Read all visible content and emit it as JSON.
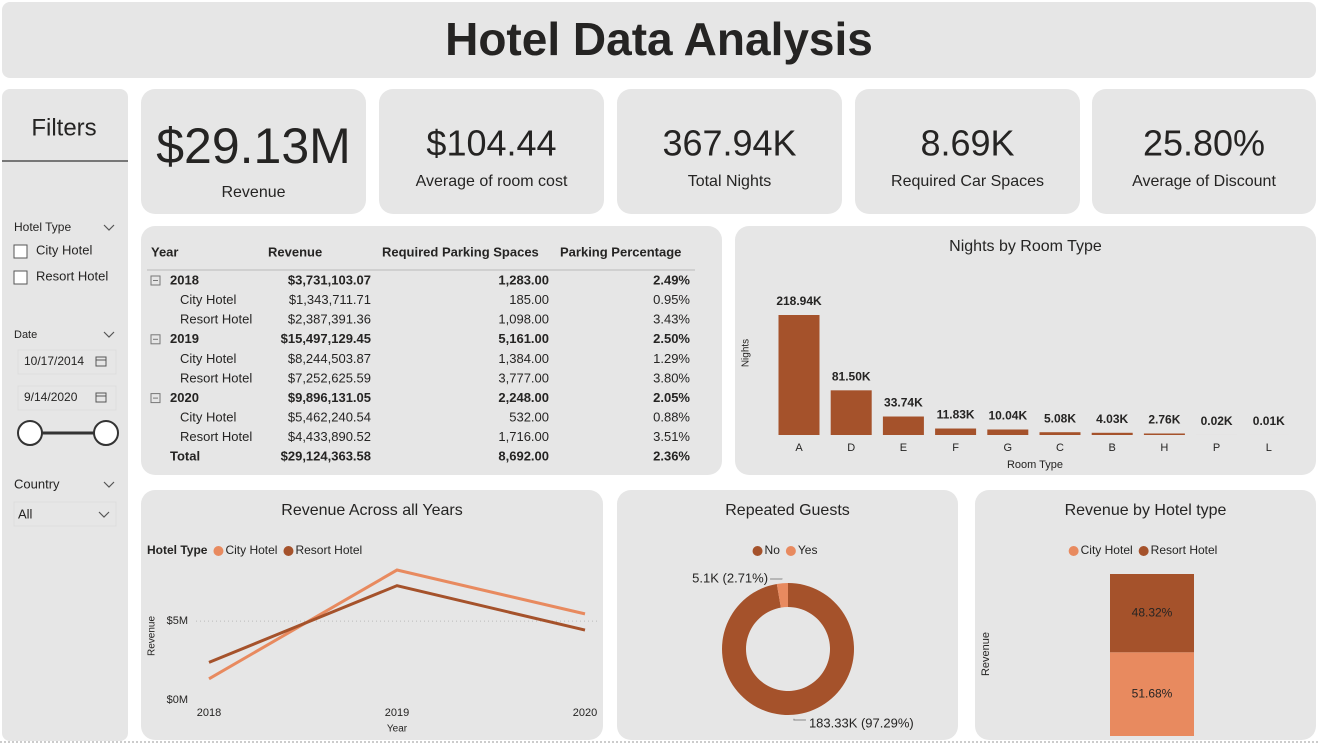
{
  "header": {
    "title": "Hotel Data Analysis"
  },
  "filters": {
    "title": "Filters",
    "hotel_type": {
      "label": "Hotel Type",
      "options": [
        "City Hotel",
        "Resort Hotel"
      ]
    },
    "date": {
      "label": "Date",
      "start": "10/17/2014",
      "end": "9/14/2020"
    },
    "country": {
      "label": "Country",
      "value": "All"
    }
  },
  "kpis": [
    {
      "value": "$29.13M",
      "label": "Revenue"
    },
    {
      "value": "$104.44",
      "label": "Average of room cost"
    },
    {
      "value": "367.94K",
      "label": "Total Nights"
    },
    {
      "value": "8.69K",
      "label": "Required Car Spaces"
    },
    {
      "value": "25.80%",
      "label": "Average of Discount"
    }
  ],
  "table": {
    "columns": [
      "Year",
      "Revenue",
      "Required Parking Spaces",
      "Parking Percentage"
    ],
    "groups": [
      {
        "year": "2018",
        "values": [
          "$3,731,103.07",
          "1,283.00",
          "2.49%"
        ],
        "rows": [
          {
            "name": "City Hotel",
            "values": [
              "$1,343,711.71",
              "185.00",
              "0.95%"
            ]
          },
          {
            "name": "Resort Hotel",
            "values": [
              "$2,387,391.36",
              "1,098.00",
              "3.43%"
            ]
          }
        ]
      },
      {
        "year": "2019",
        "values": [
          "$15,497,129.45",
          "5,161.00",
          "2.50%"
        ],
        "rows": [
          {
            "name": "City Hotel",
            "values": [
              "$8,244,503.87",
              "1,384.00",
              "1.29%"
            ]
          },
          {
            "name": "Resort Hotel",
            "values": [
              "$7,252,625.59",
              "3,777.00",
              "3.80%"
            ]
          }
        ]
      },
      {
        "year": "2020",
        "values": [
          "$9,896,131.05",
          "2,248.00",
          "2.05%"
        ],
        "rows": [
          {
            "name": "City Hotel",
            "values": [
              "$5,462,240.54",
              "532.00",
              "0.88%"
            ]
          },
          {
            "name": "Resort Hotel",
            "values": [
              "$4,433,890.52",
              "1,716.00",
              "3.51%"
            ]
          }
        ]
      }
    ],
    "total": {
      "label": "Total",
      "values": [
        "$29,124,363.58",
        "8,692.00",
        "2.36%"
      ]
    }
  },
  "chart_data": [
    {
      "type": "bar",
      "title": "Nights by Room Type",
      "x_label": "Room Type",
      "y_label": "Nights",
      "color": "#a5522b",
      "categories": [
        "A",
        "D",
        "E",
        "F",
        "G",
        "C",
        "B",
        "H",
        "P",
        "L"
      ],
      "values": [
        218940,
        81500,
        33740,
        11830,
        10040,
        5080,
        4030,
        2760,
        20,
        10
      ],
      "value_labels": [
        "218.94K",
        "81.50K",
        "33.74K",
        "11.83K",
        "10.04K",
        "5.08K",
        "4.03K",
        "2.76K",
        "0.02K",
        "0.01K"
      ]
    },
    {
      "type": "line",
      "title": "Revenue Across all Years",
      "x_label": "Year",
      "y_label": "Revenue",
      "legend_title": "Hotel Type",
      "x": [
        2018,
        2019,
        2020
      ],
      "xlim": [
        2018,
        2020
      ],
      "xticks": [
        2018,
        2019,
        2020
      ],
      "ylim": [
        0,
        8500000
      ],
      "yticks": [
        {
          "value": 0,
          "label": "$0M"
        },
        {
          "value": 5000000,
          "label": "$5M"
        }
      ],
      "grid": true,
      "series": [
        {
          "name": "City Hotel",
          "color": "#e88a5f",
          "values": [
            1343711.71,
            8244503.87,
            5462240.54
          ]
        },
        {
          "name": "Resort Hotel",
          "color": "#a5522b",
          "values": [
            2387391.36,
            7252625.59,
            4433890.52
          ]
        }
      ]
    },
    {
      "type": "pie",
      "title": "Repeated Guests",
      "donut": true,
      "categories": [
        "No",
        "Yes"
      ],
      "colors": [
        "#a5522b",
        "#e88a5f"
      ],
      "values": [
        183330,
        5100
      ],
      "value_labels": [
        "183.33K (97.29%)",
        "5.1K (2.71%)"
      ]
    },
    {
      "type": "bar",
      "title": "Revenue by Hotel type",
      "y_label": "Revenue",
      "stacked": true,
      "percent": true,
      "categories": [
        null
      ],
      "series": [
        {
          "name": "City Hotel",
          "color": "#e88a5f",
          "values": [
            51.68
          ],
          "value_labels": [
            "51.68%"
          ]
        },
        {
          "name": "Resort Hotel",
          "color": "#a5522b",
          "values": [
            48.32
          ],
          "value_labels": [
            "48.32%"
          ]
        }
      ]
    }
  ]
}
